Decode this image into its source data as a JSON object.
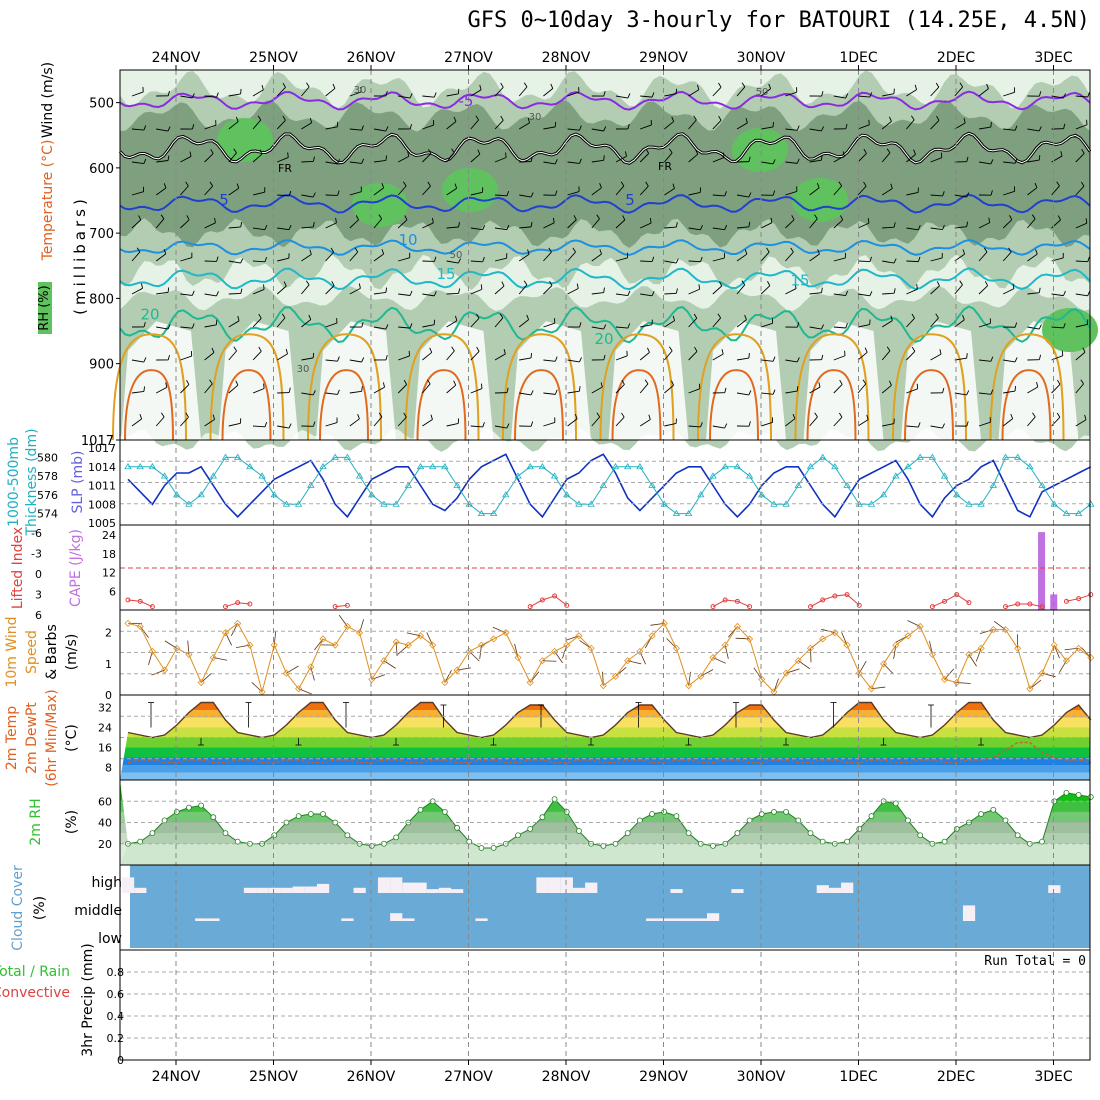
{
  "title": "GFS 0~10day 3-hourly for BATOURI (14.25E, 4.5N)",
  "dates": [
    "24NOV",
    "25NOV",
    "26NOV",
    "27NOV",
    "28NOV",
    "29NOV",
    "30NOV",
    "1DEC",
    "2DEC",
    "3DEC"
  ],
  "colors": {
    "rh_light": "#e6f2e6",
    "rh_mid": "#b3cdb3",
    "rh_dark": "#7ea07e",
    "rh_green": "#5fc25f",
    "temp_purple": "#8a2be2",
    "temp_blue": "#2040d0",
    "temp_lightblue": "#1e90e0",
    "temp_cyan": "#20b8c8",
    "temp_teal": "#20b890",
    "temp_orange": "#e0a020",
    "slp": "#1030c0",
    "thickness": "#20b0c0",
    "cape": "#c070e0",
    "lifted": "#e04040",
    "wind": "#e09020",
    "cloud": "#6aaad6",
    "rh2m": "#30c030"
  },
  "chart_data": [
    {
      "type": "contour",
      "id": "upper_air",
      "ylabel": "(millibars)",
      "legend": [
        "RH (%)",
        "Temperature (°C)",
        "Wind (m/s)"
      ],
      "y_ticks": [
        500,
        600,
        700,
        800,
        900,
        1017
      ],
      "ylim": [
        450,
        1017
      ],
      "isotherm_labels": [
        {
          "value": -5,
          "text": "-5"
        },
        {
          "value": 5,
          "text": "5"
        },
        {
          "value": 10,
          "text": "10"
        },
        {
          "value": 15,
          "text": "15"
        },
        {
          "value": 20,
          "text": "20"
        }
      ],
      "freezing_label": "FR",
      "rh_labels": [
        "30",
        "50"
      ]
    },
    {
      "type": "line",
      "id": "slp_thickness",
      "left_label": "1000-500mb Thickness (dm)",
      "right_label": "SLP (mb)",
      "left_ticks": [
        574,
        576,
        578,
        580
      ],
      "right_ticks": [
        1005,
        1008,
        1011,
        1014,
        1017
      ],
      "slp_ylim": [
        1005,
        1017
      ],
      "thickness_ylim": [
        573,
        581
      ],
      "slp": [
        1012,
        1010,
        1008,
        1011,
        1013,
        1013,
        1014,
        1011,
        1008,
        1006,
        1008,
        1010,
        1012,
        1013,
        1014,
        1015,
        1012,
        1008,
        1006,
        1009,
        1012,
        1013,
        1014,
        1014,
        1011,
        1008,
        1007,
        1009,
        1012,
        1014,
        1015,
        1016,
        1012,
        1008,
        1006,
        1009,
        1012,
        1013,
        1015,
        1016,
        1013,
        1009,
        1007,
        1009,
        1011,
        1013,
        1014,
        1014,
        1011,
        1008,
        1006,
        1008,
        1011,
        1013,
        1014,
        1014,
        1011,
        1008,
        1006,
        1009,
        1012,
        1013,
        1014,
        1015,
        1012,
        1008,
        1006,
        1009,
        1011,
        1012,
        1014,
        1015,
        1011,
        1007,
        1006,
        1010,
        1011,
        1012,
        1013,
        1014
      ],
      "thickness": [
        579,
        579,
        579,
        578,
        576,
        575,
        576,
        578,
        580,
        580,
        579,
        578,
        576,
        575,
        575,
        577,
        579,
        580,
        580,
        578,
        576,
        575,
        575,
        577,
        579,
        579,
        579,
        577,
        575,
        574,
        574,
        576,
        578,
        579,
        579,
        578,
        576,
        575,
        575,
        577,
        579,
        579,
        579,
        577,
        575,
        574,
        574,
        576,
        578,
        579,
        579,
        578,
        576,
        575,
        575,
        577,
        579,
        580,
        579,
        577,
        575,
        575,
        576,
        578,
        579,
        580,
        580,
        578,
        576,
        575,
        575,
        577,
        580,
        580,
        579,
        577,
        575,
        574,
        574,
        575
      ]
    },
    {
      "type": "bar",
      "id": "cape_li",
      "left_label": "Lifted Index",
      "right_label": "CAPE (J/kg)",
      "left_ticks": [
        "-6",
        "-3",
        "0",
        "3",
        "6"
      ],
      "right_ticks": [
        6,
        12,
        18,
        24
      ],
      "cape": [
        {
          "step": 75,
          "value": 25
        },
        {
          "step": 76,
          "value": 5
        }
      ],
      "cape_ylim": [
        0,
        26
      ],
      "lifted_index_visible": [
        [
          0,
          4.8
        ],
        [
          1,
          5.0
        ],
        [
          2,
          5.8
        ],
        [
          8,
          5.8
        ],
        [
          9,
          5.2
        ],
        [
          10,
          5.4
        ],
        [
          17,
          5.8
        ],
        [
          18,
          5.6
        ],
        [
          33,
          5.8
        ],
        [
          34,
          4.8
        ],
        [
          35,
          4.2
        ],
        [
          36,
          5.6
        ],
        [
          48,
          5.8
        ],
        [
          49,
          4.8
        ],
        [
          50,
          5.0
        ],
        [
          51,
          5.8
        ],
        [
          56,
          5.8
        ],
        [
          57,
          4.8
        ],
        [
          58,
          4.2
        ],
        [
          59,
          4.0
        ],
        [
          60,
          5.6
        ],
        [
          66,
          5.8
        ],
        [
          67,
          5.0
        ],
        [
          68,
          4.0
        ],
        [
          69,
          5.2
        ],
        [
          72,
          5.8
        ],
        [
          73,
          5.4
        ],
        [
          74,
          5.4
        ],
        [
          75,
          5.8
        ],
        [
          77,
          5.0
        ],
        [
          78,
          4.6
        ],
        [
          79,
          4.0
        ]
      ]
    },
    {
      "type": "line",
      "id": "wind10m",
      "ylabel": "10m Wind Speed & Barbs (m/s)",
      "y_ticks": [
        0,
        1,
        2
      ],
      "ylim": [
        0,
        2.6
      ],
      "values": [
        2.3,
        2.2,
        1.4,
        0.8,
        1.5,
        1.3,
        0.4,
        1.2,
        2.0,
        2.3,
        1.6,
        0.1,
        1.6,
        0.7,
        0.2,
        0.9,
        1.8,
        1.6,
        2.2,
        2.0,
        0.5,
        1.1,
        1.7,
        1.6,
        1.9,
        1.6,
        0.4,
        0.8,
        1.4,
        1.6,
        1.8,
        2.0,
        1.2,
        0.4,
        1.1,
        1.4,
        1.6,
        1.9,
        1.5,
        0.3,
        0.6,
        1.1,
        1.4,
        1.9,
        2.3,
        1.5,
        0.3,
        0.6,
        1.2,
        1.6,
        2.2,
        1.8,
        0.5,
        0.1,
        0.7,
        1.1,
        1.5,
        1.8,
        2.0,
        1.6,
        0.7,
        0.2,
        1.0,
        1.6,
        1.9,
        2.2,
        1.3,
        0.5,
        0.4,
        1.3,
        1.5,
        2.1,
        2.1,
        1.5,
        0.2,
        0.7,
        1.6,
        1.1,
        1.5,
        1.2
      ]
    },
    {
      "type": "area",
      "id": "temp2m",
      "ylabel": "2m Temp 2m DewPt (6hr Min/Max) (°C)",
      "y_ticks": [
        8,
        16,
        24,
        32
      ],
      "ylim": [
        3,
        37
      ],
      "temperature": [
        22,
        21,
        20,
        21,
        25,
        30,
        34,
        34,
        27,
        22,
        21,
        20,
        21,
        25,
        30,
        34,
        34,
        27,
        22,
        21,
        20,
        21,
        25,
        30,
        34,
        34,
        27,
        22,
        21,
        20,
        21,
        25,
        30,
        33,
        33,
        27,
        22,
        21,
        20,
        21,
        25,
        30,
        33,
        33,
        27,
        22,
        21,
        20,
        21,
        25,
        30,
        33,
        33,
        27,
        22,
        21,
        20,
        21,
        25,
        30,
        34,
        34,
        27,
        22,
        21,
        20,
        21,
        25,
        30,
        34,
        34,
        27,
        22,
        21,
        20,
        21,
        25,
        30,
        33,
        27
      ],
      "dewpoint": [
        10,
        11,
        11,
        10,
        10,
        11,
        11,
        10,
        10,
        11,
        11,
        10,
        10,
        11,
        11,
        10,
        10,
        11,
        11,
        10,
        10,
        11,
        11,
        10,
        10,
        11,
        11,
        10,
        10,
        11,
        11,
        10,
        10,
        11,
        11,
        10,
        10,
        11,
        11,
        10,
        10,
        11,
        11,
        10,
        10,
        11,
        11,
        10,
        10,
        11,
        11,
        10,
        10,
        11,
        11,
        10,
        10,
        11,
        11,
        10,
        10,
        11,
        11,
        10,
        10,
        11,
        11,
        10,
        10,
        11,
        11,
        12,
        15,
        18,
        18,
        14,
        12,
        11,
        11,
        10
      ],
      "max_markers": [
        34,
        34,
        34,
        33,
        33,
        34,
        34,
        34,
        33
      ],
      "min_markers": [
        20,
        20,
        20,
        20,
        20,
        20,
        20,
        20,
        20
      ]
    },
    {
      "type": "area",
      "id": "rh2m",
      "ylabel": "2m RH (%)",
      "y_ticks": [
        20,
        40,
        60
      ],
      "ylim": [
        0,
        80
      ],
      "values": [
        20,
        22,
        30,
        42,
        50,
        54,
        56,
        45,
        30,
        22,
        20,
        20,
        28,
        40,
        46,
        48,
        48,
        40,
        28,
        20,
        18,
        20,
        26,
        40,
        52,
        60,
        50,
        35,
        22,
        16,
        16,
        20,
        28,
        34,
        45,
        62,
        50,
        32,
        20,
        18,
        20,
        30,
        42,
        48,
        50,
        46,
        30,
        20,
        18,
        20,
        30,
        42,
        48,
        50,
        50,
        42,
        30,
        22,
        20,
        22,
        34,
        46,
        60,
        58,
        42,
        28,
        20,
        22,
        34,
        40,
        48,
        52,
        42,
        28,
        20,
        22,
        60,
        68,
        66,
        64
      ]
    },
    {
      "type": "bar",
      "id": "cloud",
      "ylabel": "Cloud Cover (%)",
      "y_ticks": [
        "high",
        "middle",
        "low"
      ],
      "high": [
        60,
        20,
        0,
        0,
        0,
        0,
        0,
        0,
        0,
        0,
        20,
        20,
        20,
        20,
        25,
        25,
        35,
        0,
        0,
        20,
        0,
        60,
        60,
        40,
        40,
        15,
        20,
        15,
        0,
        0,
        0,
        0,
        0,
        0,
        60,
        60,
        60,
        20,
        40,
        0,
        0,
        0,
        0,
        0,
        0,
        15,
        0,
        0,
        0,
        0,
        15,
        0,
        0,
        0,
        0,
        0,
        0,
        30,
        20,
        40,
        0,
        0,
        0,
        0,
        0,
        0,
        0,
        0,
        0,
        0,
        0,
        0,
        0,
        0,
        0,
        0,
        30,
        0,
        0,
        0
      ],
      "middle": [
        0,
        0,
        0,
        0,
        0,
        0,
        10,
        10,
        0,
        0,
        0,
        0,
        0,
        0,
        0,
        0,
        0,
        0,
        10,
        0,
        0,
        0,
        30,
        10,
        0,
        0,
        0,
        0,
        0,
        10,
        0,
        0,
        0,
        0,
        0,
        0,
        0,
        0,
        0,
        0,
        0,
        0,
        0,
        10,
        10,
        10,
        10,
        10,
        30,
        0,
        0,
        0,
        0,
        0,
        0,
        0,
        0,
        0,
        0,
        0,
        0,
        0,
        0,
        0,
        0,
        0,
        0,
        0,
        0,
        60,
        0,
        0,
        0,
        0,
        0,
        0,
        0,
        0,
        0,
        0
      ],
      "low": []
    },
    {
      "type": "bar",
      "id": "precip",
      "left_label": "3hr Precip (mm)",
      "side_labels": [
        "Total / Rain",
        "Convective"
      ],
      "y_ticks": [
        "0",
        "0.2",
        "0.4",
        "0.6",
        "0.8"
      ],
      "ylim": [
        0,
        1.0
      ],
      "run_total": "Run Total = 0",
      "values": []
    }
  ]
}
